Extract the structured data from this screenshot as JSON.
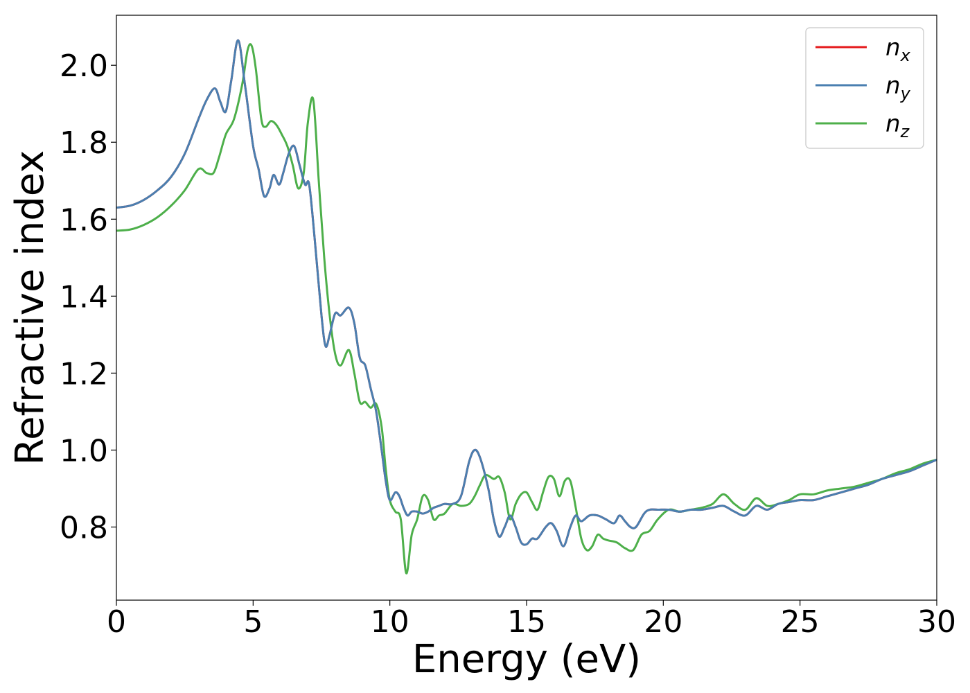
{
  "chart_data": {
    "type": "line",
    "xlabel": "Energy (eV)",
    "ylabel": "Refractive index",
    "xlim": [
      0,
      30
    ],
    "ylim": [
      0.61,
      2.13
    ],
    "xticks": [
      0,
      5,
      10,
      15,
      20,
      25,
      30
    ],
    "xtick_labels": [
      "0",
      "5",
      "10",
      "15",
      "20",
      "25",
      "30"
    ],
    "yticks": [
      0.8,
      1.0,
      1.2,
      1.4,
      1.6,
      1.8,
      2.0
    ],
    "ytick_labels": [
      "0.8",
      "1.0",
      "1.2",
      "1.4",
      "1.6",
      "1.8",
      "2.0"
    ],
    "grid": false,
    "legend_position": "top-right",
    "series": [
      {
        "name": "n_x",
        "label_base": "n",
        "label_sub": "x",
        "color": "#e41a1c",
        "x": [
          0,
          0.5,
          1,
          1.5,
          2,
          2.5,
          3,
          3.3,
          3.6,
          3.8,
          4.0,
          4.2,
          4.45,
          4.7,
          5.0,
          5.2,
          5.4,
          5.6,
          5.75,
          5.95,
          6.1,
          6.3,
          6.5,
          6.7,
          6.9,
          7.05,
          7.25,
          7.5,
          7.65,
          7.8,
          8.0,
          8.2,
          8.5,
          8.7,
          8.9,
          9.1,
          9.3,
          9.5,
          9.7,
          9.85,
          10.0,
          10.2,
          10.35,
          10.5,
          10.65,
          10.8,
          11.0,
          11.2,
          11.4,
          11.6,
          11.8,
          12.0,
          12.3,
          12.6,
          12.9,
          13.1,
          13.3,
          13.6,
          13.8,
          14.0,
          14.2,
          14.4,
          14.6,
          14.8,
          15.0,
          15.2,
          15.4,
          15.7,
          15.9,
          16.1,
          16.35,
          16.6,
          16.8,
          17.0,
          17.3,
          17.6,
          17.9,
          18.2,
          18.4,
          18.6,
          18.8,
          19.0,
          19.3,
          19.5,
          19.8,
          20.2,
          20.6,
          21.0,
          21.4,
          21.8,
          22.2,
          22.6,
          23.0,
          23.4,
          23.8,
          24.2,
          24.6,
          25.0,
          25.5,
          26.0,
          26.5,
          27.0,
          27.5,
          28.0,
          28.5,
          29.0,
          29.5,
          30.0
        ],
        "y": [
          1.63,
          1.635,
          1.65,
          1.675,
          1.71,
          1.77,
          1.86,
          1.91,
          1.94,
          1.905,
          1.88,
          1.96,
          2.065,
          1.95,
          1.79,
          1.73,
          1.66,
          1.68,
          1.715,
          1.69,
          1.72,
          1.77,
          1.79,
          1.74,
          1.69,
          1.69,
          1.55,
          1.35,
          1.27,
          1.3,
          1.355,
          1.35,
          1.37,
          1.33,
          1.24,
          1.22,
          1.16,
          1.1,
          1.0,
          0.92,
          0.87,
          0.89,
          0.88,
          0.85,
          0.83,
          0.84,
          0.84,
          0.835,
          0.84,
          0.85,
          0.855,
          0.86,
          0.86,
          0.88,
          0.97,
          1.0,
          0.98,
          0.9,
          0.82,
          0.775,
          0.8,
          0.83,
          0.8,
          0.76,
          0.755,
          0.77,
          0.77,
          0.8,
          0.81,
          0.79,
          0.75,
          0.8,
          0.83,
          0.815,
          0.83,
          0.83,
          0.82,
          0.81,
          0.83,
          0.815,
          0.8,
          0.8,
          0.835,
          0.845,
          0.845,
          0.845,
          0.84,
          0.845,
          0.845,
          0.85,
          0.855,
          0.84,
          0.83,
          0.855,
          0.845,
          0.86,
          0.865,
          0.87,
          0.87,
          0.88,
          0.89,
          0.9,
          0.91,
          0.925,
          0.935,
          0.945,
          0.96,
          0.975
        ]
      },
      {
        "name": "n_y",
        "label_base": "n",
        "label_sub": "y",
        "color": "#4a7fb0",
        "x": [
          0,
          0.5,
          1,
          1.5,
          2,
          2.5,
          3,
          3.3,
          3.6,
          3.8,
          4.0,
          4.2,
          4.45,
          4.7,
          5.0,
          5.2,
          5.4,
          5.6,
          5.75,
          5.95,
          6.1,
          6.3,
          6.5,
          6.7,
          6.9,
          7.05,
          7.25,
          7.5,
          7.65,
          7.8,
          8.0,
          8.2,
          8.5,
          8.7,
          8.9,
          9.1,
          9.3,
          9.5,
          9.7,
          9.85,
          10.0,
          10.2,
          10.35,
          10.5,
          10.65,
          10.8,
          11.0,
          11.2,
          11.4,
          11.6,
          11.8,
          12.0,
          12.3,
          12.6,
          12.9,
          13.1,
          13.3,
          13.6,
          13.8,
          14.0,
          14.2,
          14.4,
          14.6,
          14.8,
          15.0,
          15.2,
          15.4,
          15.7,
          15.9,
          16.1,
          16.35,
          16.6,
          16.8,
          17.0,
          17.3,
          17.6,
          17.9,
          18.2,
          18.4,
          18.6,
          18.8,
          19.0,
          19.3,
          19.5,
          19.8,
          20.2,
          20.6,
          21.0,
          21.4,
          21.8,
          22.2,
          22.6,
          23.0,
          23.4,
          23.8,
          24.2,
          24.6,
          25.0,
          25.5,
          26.0,
          26.5,
          27.0,
          27.5,
          28.0,
          28.5,
          29.0,
          29.5,
          30.0
        ],
        "y": [
          1.63,
          1.635,
          1.65,
          1.675,
          1.71,
          1.77,
          1.86,
          1.91,
          1.94,
          1.905,
          1.88,
          1.96,
          2.065,
          1.95,
          1.79,
          1.73,
          1.66,
          1.68,
          1.715,
          1.69,
          1.72,
          1.77,
          1.79,
          1.74,
          1.69,
          1.69,
          1.55,
          1.35,
          1.27,
          1.3,
          1.355,
          1.35,
          1.37,
          1.33,
          1.24,
          1.22,
          1.16,
          1.1,
          1.0,
          0.92,
          0.87,
          0.89,
          0.88,
          0.85,
          0.83,
          0.84,
          0.84,
          0.835,
          0.84,
          0.85,
          0.855,
          0.86,
          0.86,
          0.88,
          0.97,
          1.0,
          0.98,
          0.9,
          0.82,
          0.775,
          0.8,
          0.83,
          0.8,
          0.76,
          0.755,
          0.77,
          0.77,
          0.8,
          0.81,
          0.79,
          0.75,
          0.8,
          0.83,
          0.815,
          0.83,
          0.83,
          0.82,
          0.81,
          0.83,
          0.815,
          0.8,
          0.8,
          0.835,
          0.845,
          0.845,
          0.845,
          0.84,
          0.845,
          0.845,
          0.85,
          0.855,
          0.84,
          0.83,
          0.855,
          0.845,
          0.86,
          0.865,
          0.87,
          0.87,
          0.88,
          0.89,
          0.9,
          0.91,
          0.925,
          0.935,
          0.945,
          0.96,
          0.975
        ]
      },
      {
        "name": "n_z",
        "label_base": "n",
        "label_sub": "z",
        "color": "#4daf4a",
        "x": [
          0,
          0.5,
          1,
          1.5,
          2,
          2.5,
          3.0,
          3.3,
          3.55,
          3.75,
          4.0,
          4.3,
          4.6,
          4.8,
          4.95,
          5.1,
          5.3,
          5.45,
          5.65,
          5.85,
          6.05,
          6.25,
          6.45,
          6.65,
          6.85,
          7.0,
          7.2,
          7.4,
          7.6,
          7.8,
          8.0,
          8.2,
          8.5,
          8.7,
          8.9,
          9.1,
          9.3,
          9.5,
          9.7,
          9.85,
          10.0,
          10.2,
          10.4,
          10.6,
          10.8,
          11.0,
          11.2,
          11.4,
          11.6,
          11.8,
          12.0,
          12.3,
          12.6,
          12.9,
          13.1,
          13.3,
          13.5,
          13.8,
          14.0,
          14.2,
          14.4,
          14.6,
          14.8,
          15.0,
          15.2,
          15.4,
          15.6,
          15.8,
          16.0,
          16.2,
          16.4,
          16.6,
          16.8,
          17.0,
          17.2,
          17.4,
          17.6,
          17.8,
          18.0,
          18.3,
          18.6,
          18.9,
          19.2,
          19.5,
          19.8,
          20.2,
          20.6,
          21.0,
          21.4,
          21.8,
          22.2,
          22.6,
          23.0,
          23.4,
          23.8,
          24.2,
          24.6,
          25.0,
          25.5,
          26.0,
          26.5,
          27.0,
          27.5,
          28.0,
          28.5,
          29.0,
          29.5,
          30.0
        ],
        "y": [
          1.57,
          1.573,
          1.585,
          1.605,
          1.635,
          1.675,
          1.73,
          1.72,
          1.72,
          1.76,
          1.82,
          1.86,
          1.95,
          2.04,
          2.05,
          1.99,
          1.86,
          1.84,
          1.855,
          1.845,
          1.82,
          1.79,
          1.74,
          1.68,
          1.72,
          1.85,
          1.91,
          1.7,
          1.5,
          1.35,
          1.25,
          1.22,
          1.26,
          1.2,
          1.125,
          1.125,
          1.11,
          1.12,
          1.06,
          0.95,
          0.87,
          0.84,
          0.82,
          0.68,
          0.78,
          0.82,
          0.88,
          0.87,
          0.82,
          0.83,
          0.835,
          0.86,
          0.855,
          0.86,
          0.88,
          0.91,
          0.935,
          0.925,
          0.93,
          0.89,
          0.82,
          0.86,
          0.885,
          0.89,
          0.865,
          0.845,
          0.89,
          0.93,
          0.925,
          0.88,
          0.92,
          0.92,
          0.85,
          0.77,
          0.74,
          0.75,
          0.78,
          0.77,
          0.765,
          0.76,
          0.745,
          0.74,
          0.78,
          0.79,
          0.82,
          0.845,
          0.84,
          0.845,
          0.85,
          0.86,
          0.885,
          0.86,
          0.845,
          0.875,
          0.855,
          0.86,
          0.87,
          0.885,
          0.885,
          0.895,
          0.9,
          0.905,
          0.915,
          0.925,
          0.94,
          0.95,
          0.965,
          0.975
        ]
      }
    ]
  }
}
